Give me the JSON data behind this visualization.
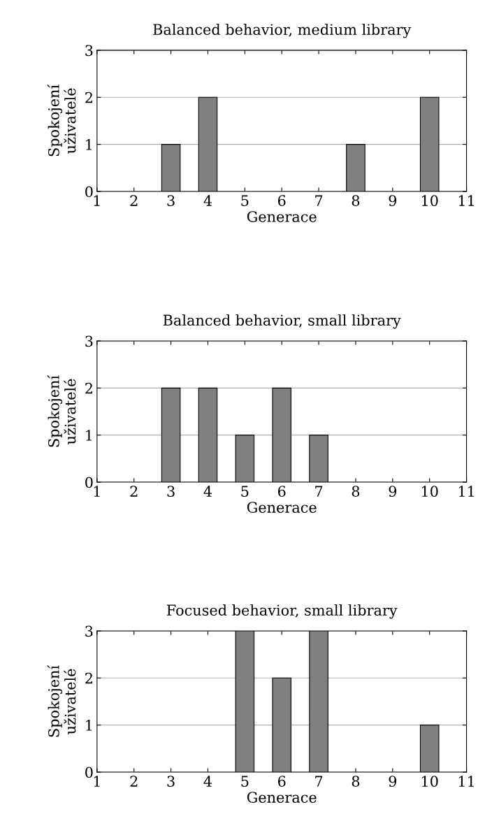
{
  "chart_data": [
    {
      "type": "bar",
      "title": "Balanced behavior, medium library",
      "xlabel": "Generace",
      "ylabel": "Spokojení\nuživatelé",
      "x": [
        3,
        4,
        8,
        10
      ],
      "values": [
        1,
        2,
        1,
        2
      ],
      "color": "#808080",
      "xlim": [
        1,
        11
      ],
      "xticks": [
        1,
        2,
        3,
        4,
        5,
        6,
        7,
        8,
        9,
        10,
        11
      ],
      "ylim": [
        0,
        3
      ],
      "yticks": [
        0,
        1,
        2,
        3
      ],
      "grid": "y"
    },
    {
      "type": "bar",
      "title": "Balanced behavior, small library",
      "xlabel": "Generace",
      "ylabel": "Spokojení\nuživatelé",
      "x": [
        3,
        4,
        5,
        6,
        7
      ],
      "values": [
        2,
        2,
        1,
        2,
        1
      ],
      "color": "#808080",
      "xlim": [
        1,
        11
      ],
      "xticks": [
        1,
        2,
        3,
        4,
        5,
        6,
        7,
        8,
        9,
        10,
        11
      ],
      "ylim": [
        0,
        3
      ],
      "yticks": [
        0,
        1,
        2,
        3
      ],
      "grid": "y"
    },
    {
      "type": "bar",
      "title": "Focused behavior, small library",
      "xlabel": "Generace",
      "ylabel": "Spokojení\nuživatelé",
      "x": [
        5,
        6,
        7,
        10
      ],
      "values": [
        3,
        2,
        3,
        1
      ],
      "color": "#808080",
      "xlim": [
        1,
        11
      ],
      "xticks": [
        1,
        2,
        3,
        4,
        5,
        6,
        7,
        8,
        9,
        10,
        11
      ],
      "ylim": [
        0,
        3
      ],
      "yticks": [
        0,
        1,
        2,
        3
      ],
      "grid": "y"
    }
  ]
}
